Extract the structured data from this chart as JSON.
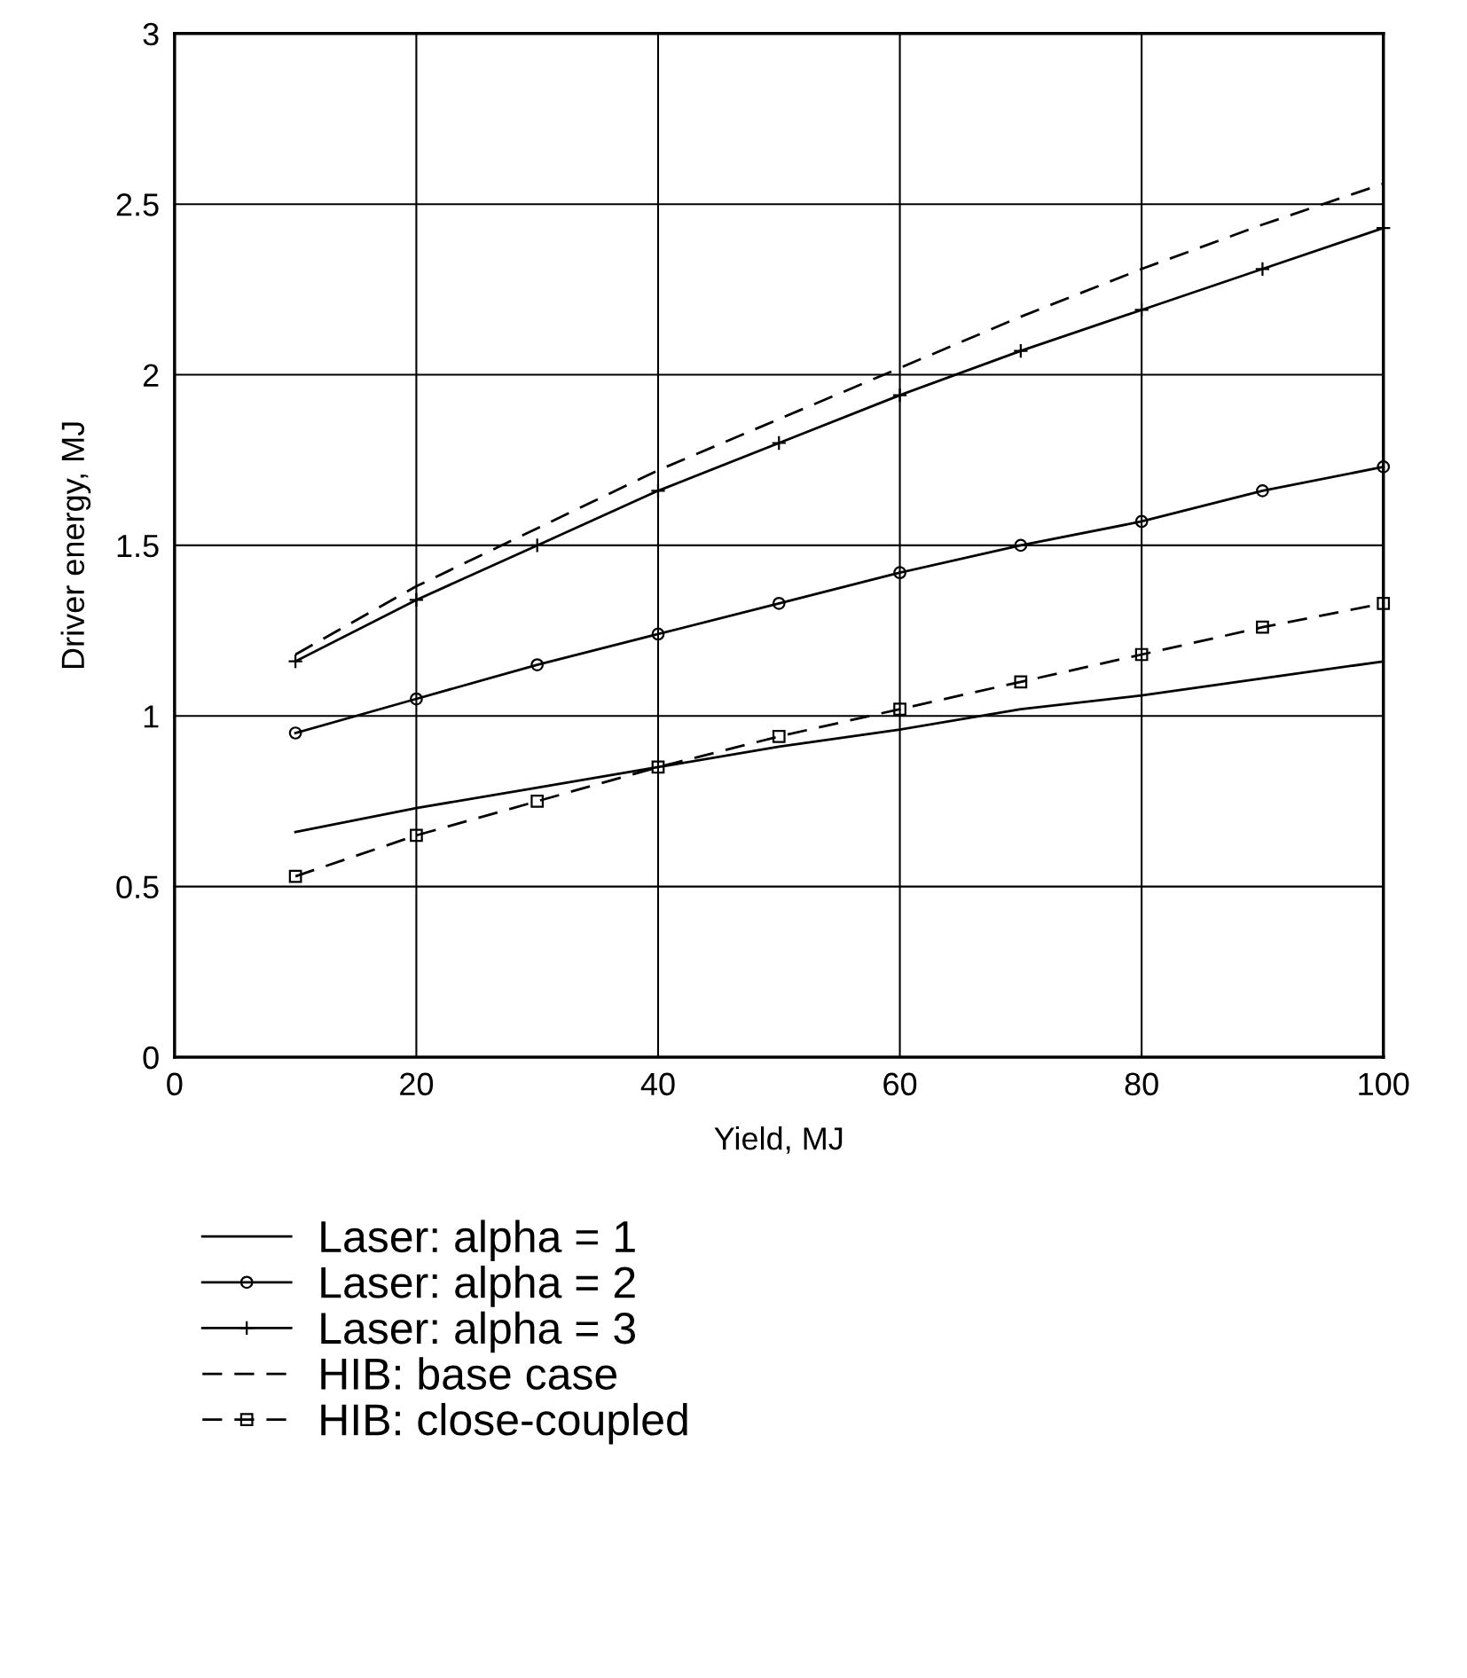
{
  "chart_data": {
    "type": "line",
    "xlabel": "Yield, MJ",
    "ylabel": "Driver energy, MJ",
    "x": [
      10,
      20,
      30,
      40,
      50,
      60,
      70,
      80,
      90,
      100
    ],
    "xlim": [
      0,
      100
    ],
    "xticks": [
      0,
      20,
      40,
      60,
      80,
      100
    ],
    "ylim": [
      0,
      3
    ],
    "yticks": [
      0,
      0.5,
      1,
      1.5,
      2,
      2.5,
      3
    ],
    "grid": true,
    "legend": "bottom",
    "series": [
      {
        "name": "Laser: alpha = 1",
        "color": "#000000",
        "marker": "none",
        "line_style": "solid",
        "values": [
          0.66,
          0.73,
          0.79,
          0.85,
          0.91,
          0.96,
          1.02,
          1.06,
          1.11,
          1.16
        ]
      },
      {
        "name": "Laser: alpha = 2",
        "color": "#000000",
        "marker": "circle",
        "line_style": "solid",
        "values": [
          0.95,
          1.05,
          1.15,
          1.24,
          1.33,
          1.42,
          1.5,
          1.57,
          1.66,
          1.73
        ]
      },
      {
        "name": "Laser: alpha = 3",
        "color": "#000000",
        "marker": "cross",
        "line_style": "solid",
        "values": [
          1.16,
          1.34,
          1.5,
          1.66,
          1.8,
          1.94,
          2.07,
          2.19,
          2.31,
          2.43
        ]
      },
      {
        "name": "HIB: base case",
        "color": "#000000",
        "marker": "none",
        "line_style": "dashed",
        "values": [
          1.18,
          1.38,
          1.55,
          1.72,
          1.87,
          2.02,
          2.17,
          2.31,
          2.44,
          2.56
        ]
      },
      {
        "name": "HIB: close-coupled",
        "color": "#000000",
        "marker": "square",
        "line_style": "dashed",
        "values": [
          0.53,
          0.65,
          0.75,
          0.85,
          0.94,
          1.02,
          1.1,
          1.18,
          1.26,
          1.33
        ]
      }
    ]
  }
}
